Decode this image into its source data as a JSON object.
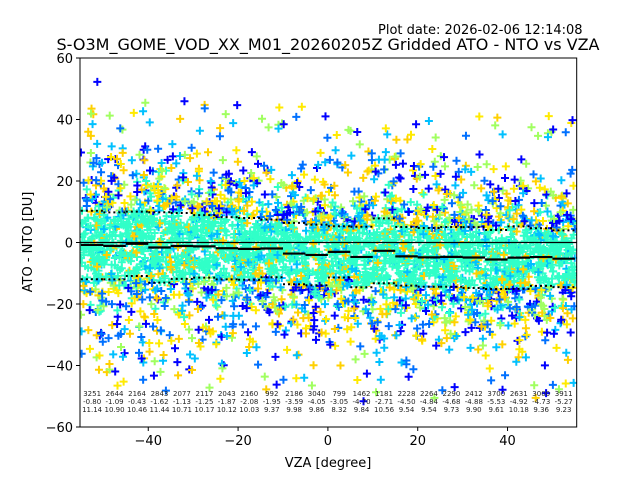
{
  "plot_date": "Plot date: 2026-02-06 12:14:08",
  "chart_data": {
    "type": "scatter",
    "title": "S-O3M_GOME_VOD_XX_M01_20260205Z Gridded ATO - NTO vs VZA",
    "xlabel": "VZA [degree]",
    "ylabel": "ATO - NTO [DU]",
    "xlim": [
      -55.2,
      55.4
    ],
    "ylim": [
      -60,
      60
    ],
    "xticks": [
      -40,
      -20,
      0,
      20,
      40
    ],
    "xtick_labels": [
      "−40",
      "−20",
      "0",
      "20",
      "40"
    ],
    "yticks": [
      -60,
      -40,
      -20,
      0,
      20,
      40,
      60
    ],
    "ytick_labels": [
      "−60",
      "−40",
      "−20",
      "0",
      "20",
      "40",
      "60"
    ],
    "grid": false,
    "marker": "+",
    "marker_colors": [
      "#0000ff",
      "#0070ff",
      "#00c0ff",
      "#30ffc8",
      "#a0ff60",
      "#ffd000",
      "#ffea00"
    ],
    "bins": {
      "width": 5,
      "centers": [
        -52.5,
        -47.5,
        -42.5,
        -37.5,
        -32.5,
        -27.5,
        -22.5,
        -17.5,
        -12.5,
        -7.5,
        -2.5,
        2.5,
        7.5,
        12.5,
        17.5,
        22.5,
        27.5,
        32.5,
        37.5,
        42.5,
        47.5,
        52.5
      ],
      "counts": [
        "3251",
        "2644",
        "2164",
        "2843",
        "2077",
        "2117",
        "2043",
        "2160",
        "992",
        "2186",
        "3040",
        "799",
        "1462",
        "1181",
        "2228",
        "2264",
        "2290",
        "2412",
        "3700",
        "2631",
        "3000",
        "3911"
      ],
      "means": [
        "-0.80",
        "-1.09",
        "-0.43",
        "-1.62",
        "-1.13",
        "-1.25",
        "-1.87",
        "-2.08",
        "-1.95",
        "-3.59",
        "-4.05",
        "-3.05",
        "-4.70",
        "-2.71",
        "-4.50",
        "-4.84",
        "-4.68",
        "-4.88",
        "-5.53",
        "-4.92",
        "-4.73",
        "-5.27"
      ],
      "stds": [
        "11.14",
        "10.90",
        "10.46",
        "11.44",
        "10.71",
        "10.17",
        "10.12",
        "10.03",
        "9.37",
        "9.98",
        "9.86",
        "8.32",
        "9.84",
        "10.56",
        "9.54",
        "9.54",
        "9.73",
        "9.90",
        "9.61",
        "10.18",
        "9.36",
        "9.23"
      ]
    },
    "series": [
      {
        "name": "mean",
        "style": "solid step line",
        "color": "#000000"
      },
      {
        "name": "mean + std",
        "style": "dotted step line",
        "color": "#000000"
      },
      {
        "name": "mean - std",
        "style": "dotted step line",
        "color": "#000000"
      },
      {
        "name": "zero",
        "style": "solid horizontal line",
        "y": 0,
        "color": "#000000"
      }
    ]
  }
}
